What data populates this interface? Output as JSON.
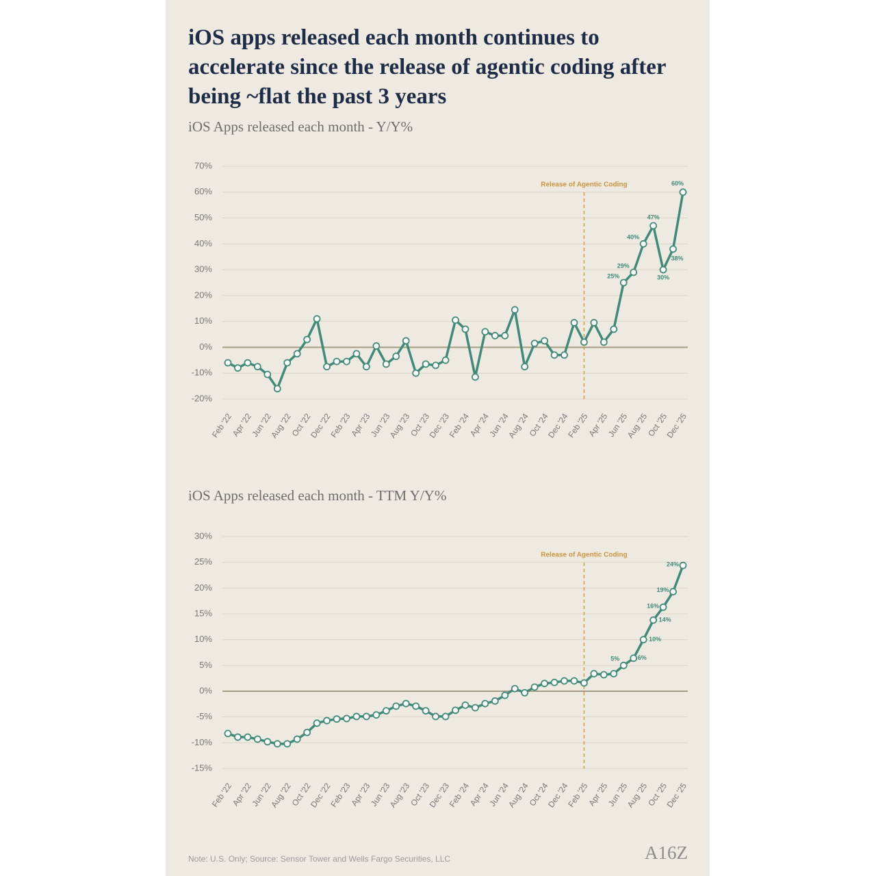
{
  "title": "iOS apps released each month continues to accelerate since the release of agentic coding after being ~flat the past 3 years",
  "note": "Note: U.S. Only; Source: Sensor Tower and Wells Fargo Securities, LLC",
  "logo": "A16Z",
  "chart_data": [
    {
      "type": "line",
      "title": "iOS Apps released each month - Y/Y%",
      "categories": [
        "Feb '22",
        null,
        "Apr '22",
        null,
        "Jun '22",
        null,
        "Aug '22",
        null,
        "Oct '22",
        null,
        "Dec '22",
        null,
        "Feb '23",
        null,
        "Apr '23",
        null,
        "Jun '23",
        null,
        "Aug '23",
        null,
        "Oct '23",
        null,
        "Dec '23",
        null,
        "Feb '24",
        null,
        "Apr '24",
        null,
        "Jun '24",
        null,
        "Aug '24",
        null,
        "Oct '24",
        null,
        "Dec '24",
        null,
        "Feb '25",
        null,
        "Apr '25",
        null,
        "Jun '25",
        null,
        "Aug '25",
        null,
        "Oct '25",
        null,
        "Dec '25"
      ],
      "series": [
        {
          "name": "Y/Y%",
          "color": "#3f8a78",
          "values": [
            -6,
            -8,
            -6,
            -7.5,
            -10.5,
            -16,
            -6,
            -2.5,
            3,
            11,
            -7.5,
            -5.5,
            -5.5,
            -2.5,
            -7.5,
            0.5,
            -6.5,
            -3.5,
            2.5,
            -10,
            -6.5,
            -7,
            -5,
            10.5,
            7,
            -11.5,
            6,
            4.5,
            4.5,
            14.5,
            -7.5,
            1.5,
            2.5,
            -3,
            -3,
            9.5,
            2,
            9.5,
            2,
            7,
            25,
            29,
            40,
            47,
            30,
            38,
            60
          ],
          "value_labels": [
            null,
            null,
            null,
            null,
            null,
            null,
            null,
            null,
            null,
            null,
            null,
            null,
            null,
            null,
            null,
            null,
            null,
            null,
            null,
            null,
            null,
            null,
            null,
            null,
            null,
            null,
            null,
            null,
            null,
            null,
            null,
            null,
            null,
            null,
            null,
            null,
            null,
            null,
            null,
            null,
            "25%",
            "29%",
            "40%",
            "47%",
            "30%",
            "38%",
            "60%"
          ]
        }
      ],
      "ylim": [
        -20,
        70
      ],
      "yticks": [
        {
          "value": -20,
          "label": "-20%"
        },
        {
          "value": -10,
          "label": "-10%"
        },
        {
          "value": 0,
          "label": "0%"
        },
        {
          "value": 10,
          "label": "10%"
        },
        {
          "value": 20,
          "label": "20%"
        },
        {
          "value": 30,
          "label": "30%"
        },
        {
          "value": 40,
          "label": "40%"
        },
        {
          "value": 50,
          "label": "50%"
        },
        {
          "value": 60,
          "label": "60%"
        },
        {
          "value": 70,
          "label": "70%"
        }
      ],
      "grid": true,
      "annotation": {
        "label": "Release of Agentic Coding",
        "category": "Feb '25"
      }
    },
    {
      "type": "line",
      "title": "iOS Apps released each month - TTM Y/Y%",
      "categories": [
        "Feb '22",
        null,
        "Apr '22",
        null,
        "Jun '22",
        null,
        "Aug '22",
        null,
        "Oct '22",
        null,
        "Dec '22",
        null,
        "Feb '23",
        null,
        "Apr '23",
        null,
        "Jun '23",
        null,
        "Aug '23",
        null,
        "Oct '23",
        null,
        "Dec '23",
        null,
        "Feb '24",
        null,
        "Apr '24",
        null,
        "Jun '24",
        null,
        "Aug '24",
        null,
        "Oct '24",
        null,
        "Dec '24",
        null,
        "Feb '25",
        null,
        "Apr '25",
        null,
        "Jun '25",
        null,
        "Aug '25",
        null,
        "Oct '25",
        null,
        "Dec '25"
      ],
      "series": [
        {
          "name": "TTM Y/Y%",
          "color": "#3f8a78",
          "values": [
            -8.2,
            -8.9,
            -8.9,
            -9.3,
            -9.8,
            -10.2,
            -10.2,
            -9.3,
            -8,
            -6.2,
            -5.7,
            -5.4,
            -5.3,
            -4.9,
            -4.9,
            -4.6,
            -3.8,
            -2.9,
            -2.4,
            -2.9,
            -3.8,
            -4.9,
            -4.9,
            -3.7,
            -2.7,
            -3.2,
            -2.4,
            -1.9,
            -0.8,
            0.5,
            -0.3,
            0.8,
            1.5,
            1.7,
            2,
            2,
            1.6,
            3.4,
            3.2,
            3.4,
            5,
            6.4,
            10,
            13.8,
            16.3,
            19.3,
            24.4
          ],
          "value_labels": [
            null,
            null,
            null,
            null,
            null,
            null,
            null,
            null,
            null,
            null,
            null,
            null,
            null,
            null,
            null,
            null,
            null,
            null,
            null,
            null,
            null,
            null,
            null,
            null,
            null,
            null,
            null,
            null,
            null,
            null,
            null,
            null,
            null,
            null,
            null,
            null,
            null,
            null,
            null,
            null,
            "5%",
            "6%",
            "10%",
            "14%",
            "16%",
            "19%",
            "24%"
          ]
        }
      ],
      "ylim": [
        -15,
        30
      ],
      "yticks": [
        {
          "value": -15,
          "label": "-15%"
        },
        {
          "value": -10,
          "label": "-10%"
        },
        {
          "value": -5,
          "label": "-5%"
        },
        {
          "value": 0,
          "label": "0%"
        },
        {
          "value": 5,
          "label": "5%"
        },
        {
          "value": 10,
          "label": "10%"
        },
        {
          "value": 15,
          "label": "15%"
        },
        {
          "value": 20,
          "label": "20%"
        },
        {
          "value": 25,
          "label": "25%"
        },
        {
          "value": 30,
          "label": "30%"
        }
      ],
      "grid": true,
      "annotation": {
        "label": "Release of Agentic Coding",
        "category": "Feb '25"
      }
    }
  ]
}
